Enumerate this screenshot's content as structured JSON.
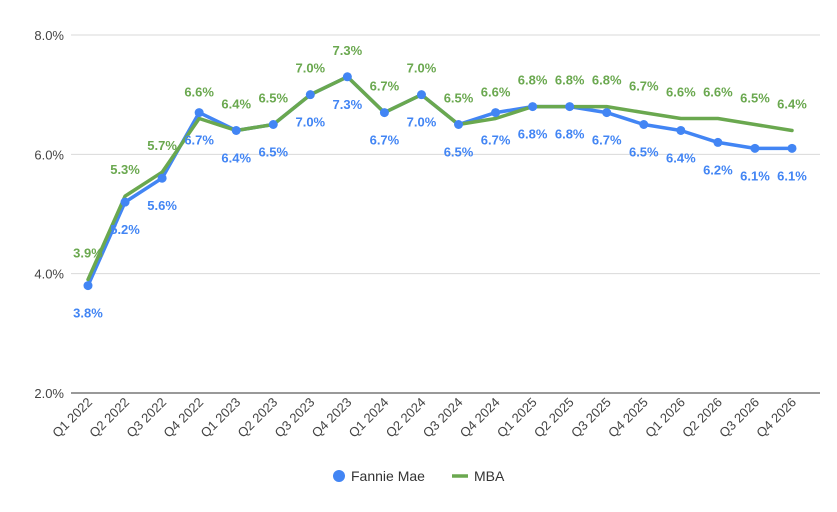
{
  "chart_data": {
    "type": "line",
    "categories": [
      "Q1 2022",
      "Q2 2022",
      "Q3 2022",
      "Q4 2022",
      "Q1 2023",
      "Q2 2023",
      "Q3 2023",
      "Q4 2023",
      "Q1 2024",
      "Q2 2024",
      "Q3 2024",
      "Q4 2024",
      "Q1 2025",
      "Q2 2025",
      "Q3 2025",
      "Q4 2025",
      "Q1 2026",
      "Q2 2026",
      "Q3 2026",
      "Q4 2026"
    ],
    "series": [
      {
        "name": "Fannie Mae",
        "color": "#4285f4",
        "marker": "circle",
        "values": [
          3.8,
          5.2,
          5.6,
          6.7,
          6.4,
          6.5,
          7.0,
          7.3,
          6.7,
          7.0,
          6.5,
          6.7,
          6.8,
          6.8,
          6.7,
          6.5,
          6.4,
          6.2,
          6.1,
          6.1
        ],
        "labels": [
          "3.8%",
          "5.2%",
          "5.6%",
          "6.7%",
          "6.4%",
          "6.5%",
          "7.0%",
          "7.3%",
          "6.7%",
          "7.0%",
          "6.5%",
          "6.7%",
          "6.8%",
          "6.8%",
          "6.7%",
          "6.5%",
          "6.4%",
          "6.2%",
          "6.1%",
          "6.1%"
        ]
      },
      {
        "name": "MBA",
        "color": "#6aa84f",
        "marker": "line",
        "values": [
          3.9,
          5.3,
          5.7,
          6.6,
          6.4,
          6.5,
          7.0,
          7.3,
          6.7,
          7.0,
          6.5,
          6.6,
          6.8,
          6.8,
          6.8,
          6.7,
          6.6,
          6.6,
          6.5,
          6.4
        ],
        "labels": [
          "3.9%",
          "5.3%",
          "5.7%",
          "6.6%",
          "6.4%",
          "6.5%",
          "7.0%",
          "7.3%",
          "6.7%",
          "7.0%",
          "6.5%",
          "6.6%",
          "6.8%",
          "6.8%",
          "6.8%",
          "6.7%",
          "6.6%",
          "6.6%",
          "6.5%",
          "6.4%"
        ]
      }
    ],
    "y_ticks": [
      {
        "value": 2.0,
        "label": "2.0%"
      },
      {
        "value": 4.0,
        "label": "4.0%"
      },
      {
        "value": 6.0,
        "label": "6.0%"
      },
      {
        "value": 8.0,
        "label": "8.0%"
      }
    ],
    "ylim": [
      2.0,
      8.0
    ],
    "grid": true,
    "legend": "bottom",
    "title": "",
    "xlabel": "",
    "ylabel": ""
  }
}
